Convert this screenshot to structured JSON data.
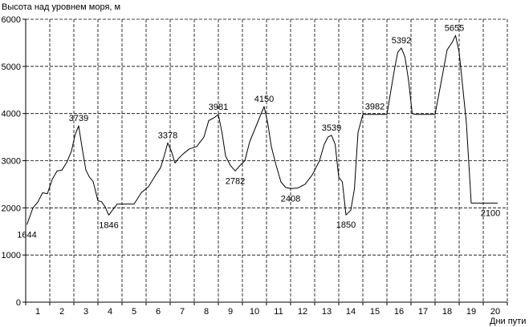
{
  "chart_data": {
    "type": "line",
    "title": "",
    "ylabel": "Высота над уровнем моря, м",
    "xlabel": "Дни пути",
    "xlim": [
      0,
      20
    ],
    "ylim": [
      0,
      6000
    ],
    "grid": true,
    "x_ticks": [
      1,
      2,
      3,
      4,
      5,
      6,
      7,
      8,
      9,
      10,
      11,
      12,
      13,
      14,
      15,
      16,
      17,
      18,
      19,
      20
    ],
    "y_ticks": [
      0,
      1000,
      2000,
      3000,
      4000,
      5000,
      6000
    ],
    "x_tick_labels": [
      "1",
      "2",
      "3",
      "4",
      "5",
      "6",
      "7",
      "8",
      "9",
      "10",
      "11",
      "12",
      "13",
      "14",
      "15",
      "16",
      "17",
      "18",
      "19",
      "20"
    ],
    "y_tick_labels": [
      "0",
      "1000",
      "2000",
      "3000",
      "4000",
      "5000",
      "6000"
    ],
    "series": [
      {
        "color": "#000000",
        "x": [
          0.05,
          0.3,
          0.5,
          0.7,
          0.9,
          1.1,
          1.3,
          1.5,
          1.7,
          1.9,
          2.05,
          2.2,
          2.35,
          2.5,
          2.65,
          2.8,
          3.0,
          3.15,
          3.3,
          3.45,
          3.6,
          3.8,
          4.0,
          4.2,
          4.5,
          4.8,
          5.1,
          5.4,
          5.6,
          5.75,
          5.9,
          6.05,
          6.2,
          6.35,
          6.55,
          6.8,
          7.1,
          7.4,
          7.6,
          7.85,
          8.0,
          8.15,
          8.3,
          8.5,
          8.7,
          8.9,
          9.1,
          9.3,
          9.5,
          9.7,
          9.9,
          10.05,
          10.2,
          10.4,
          10.6,
          10.8,
          11.0,
          11.3,
          11.6,
          11.9,
          12.2,
          12.4,
          12.55,
          12.7,
          12.85,
          13.0,
          13.15,
          13.3,
          13.5,
          13.65,
          13.8,
          14.0,
          14.2,
          14.4,
          14.7,
          15.0,
          15.3,
          15.45,
          15.6,
          15.75,
          15.9,
          16.05,
          16.2,
          16.4,
          16.6,
          16.8,
          17.0,
          17.3,
          17.5,
          17.7,
          17.85,
          18.0,
          18.1,
          18.3,
          18.5,
          18.7,
          18.9,
          19.1,
          19.3,
          19.6
        ],
        "y": [
          1644,
          2000,
          2120,
          2320,
          2300,
          2600,
          2780,
          2800,
          2960,
          3200,
          3550,
          3739,
          3250,
          2800,
          2650,
          2560,
          2150,
          2130,
          2020,
          1846,
          1950,
          2080,
          2080,
          2080,
          2080,
          2320,
          2450,
          2700,
          2850,
          3100,
          3378,
          3200,
          2950,
          3050,
          3150,
          3250,
          3300,
          3500,
          3850,
          3920,
          3981,
          3600,
          3100,
          2900,
          2782,
          2900,
          3000,
          3400,
          3650,
          3900,
          4150,
          3800,
          3300,
          2900,
          2550,
          2430,
          2408,
          2420,
          2500,
          2700,
          3000,
          3350,
          3500,
          3539,
          3350,
          2650,
          2550,
          1850,
          1950,
          2400,
          3600,
          3982,
          3982,
          3982,
          3982,
          3982,
          4900,
          5300,
          5392,
          5200,
          4700,
          4000,
          3982,
          3982,
          3982,
          3982,
          3982,
          4800,
          5350,
          5500,
          5655,
          5300,
          4800,
          3800,
          2100,
          2100,
          2100,
          2100,
          2100,
          2100
        ]
      }
    ],
    "annotations": [
      {
        "x": 0.05,
        "y": 1644,
        "text": "1644",
        "pos": "below"
      },
      {
        "x": 2.2,
        "y": 3739,
        "text": "3739",
        "pos": "above"
      },
      {
        "x": 3.45,
        "y": 1846,
        "text": "1846",
        "pos": "below"
      },
      {
        "x": 5.9,
        "y": 3378,
        "text": "3378",
        "pos": "above"
      },
      {
        "x": 8.0,
        "y": 3981,
        "text": "3981",
        "pos": "above"
      },
      {
        "x": 8.7,
        "y": 2782,
        "text": "2782",
        "pos": "below"
      },
      {
        "x": 9.9,
        "y": 4150,
        "text": "4150",
        "pos": "above"
      },
      {
        "x": 11.0,
        "y": 2408,
        "text": "2408",
        "pos": "below"
      },
      {
        "x": 12.7,
        "y": 3539,
        "text": "3539",
        "pos": "above"
      },
      {
        "x": 13.3,
        "y": 1850,
        "text": "1850",
        "pos": "below"
      },
      {
        "x": 14.5,
        "y": 3982,
        "text": "3982",
        "pos": "above"
      },
      {
        "x": 15.6,
        "y": 5392,
        "text": "5392",
        "pos": "above"
      },
      {
        "x": 17.8,
        "y": 5655,
        "text": "5655",
        "pos": "above"
      },
      {
        "x": 19.3,
        "y": 2100,
        "text": "2100",
        "pos": "below"
      }
    ]
  }
}
